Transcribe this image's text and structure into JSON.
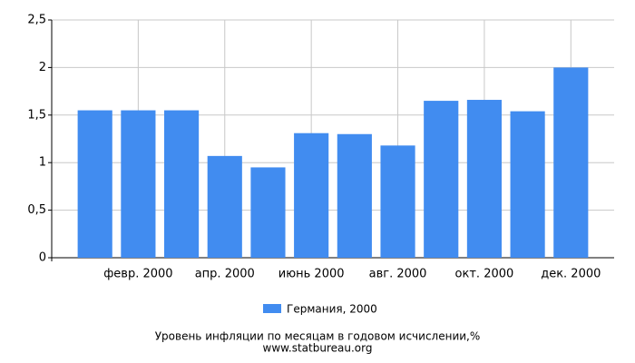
{
  "chart_data": {
    "type": "bar",
    "title": "Уровень инфляции по месяцам в годовом исчислении,%",
    "source": "www.statbureau.org",
    "categories": [
      null,
      "февр. 2000",
      null,
      "апр. 2000",
      null,
      "июнь 2000",
      null,
      "авг. 2000",
      null,
      "окт. 2000",
      null,
      "дек. 2000"
    ],
    "series": [
      {
        "name": "Германия, 2000",
        "color": "#418cf0",
        "values": [
          1.55,
          1.55,
          1.55,
          1.07,
          0.95,
          1.31,
          1.3,
          1.18,
          1.65,
          1.66,
          1.54,
          2.0
        ]
      }
    ],
    "ylim": [
      0,
      2.5
    ],
    "yticks": [
      0,
      {
        "value": 0.5,
        "label": "0,5"
      },
      1,
      {
        "value": 1.5,
        "label": "1,5"
      },
      2,
      {
        "value": 2.5,
        "label": "2,5"
      }
    ],
    "grid": true,
    "legend": "bottom"
  }
}
